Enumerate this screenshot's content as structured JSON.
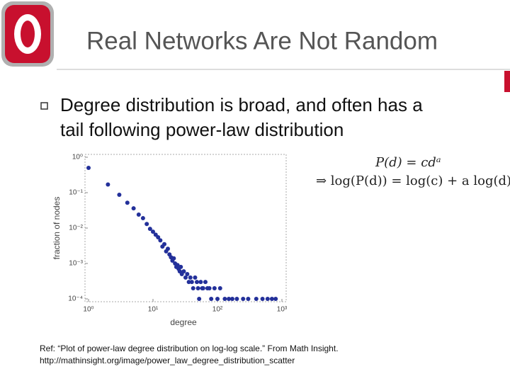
{
  "header": {
    "title": "Real Networks Are Not Random"
  },
  "bullets": [
    {
      "lines": [
        "Degree distribution is broad, and often has a",
        "tail following power-law distribution"
      ]
    }
  ],
  "formula": [
    "P(d) = cdᵃ",
    "⇒ log(P(d)) = log(c) + a log(d)"
  ],
  "reference": [
    "Ref: “Plot of power-law degree distribution on log-log scale.” From Math Insight.",
    "http://mathinsight.org/image/power_law_degree_distribution_scatter"
  ],
  "chart_data": {
    "type": "scatter",
    "x_label": "degree",
    "y_label": "fraction of nodes",
    "xscale": "log",
    "yscale": "log",
    "color": "#23309a",
    "xlim": [
      1,
      1000
    ],
    "ylim": [
      0.0001,
      1
    ],
    "xticks": [
      {
        "value": 1,
        "label": "10⁰"
      },
      {
        "value": 10,
        "label": "10¹"
      },
      {
        "value": 100,
        "label": "10²"
      },
      {
        "value": 1000,
        "label": "10³"
      }
    ],
    "yticks": [
      {
        "value": 1,
        "label": "10⁰"
      },
      {
        "value": 0.1,
        "label": "10⁻¹"
      },
      {
        "value": 0.01,
        "label": "10⁻²"
      },
      {
        "value": 0.001,
        "label": "10⁻³"
      },
      {
        "value": 0.0001,
        "label": "10⁻⁴"
      }
    ],
    "x": [
      1,
      2,
      3,
      4,
      5,
      6,
      7,
      8,
      9,
      10,
      11,
      12,
      13,
      14,
      15,
      16,
      17,
      18,
      19,
      20,
      21,
      22,
      23,
      24,
      25,
      26,
      27,
      28,
      30,
      32,
      34,
      36,
      38,
      40,
      42,
      45,
      48,
      50,
      52,
      55,
      58,
      60,
      65,
      70,
      75,
      80,
      90,
      100,
      110,
      130,
      150,
      170,
      200,
      250,
      300,
      400,
      500,
      600,
      700,
      800
    ],
    "y": [
      0.5,
      0.17,
      0.087,
      0.052,
      0.036,
      0.024,
      0.019,
      0.013,
      0.0095,
      0.0079,
      0.0065,
      0.0055,
      0.0045,
      0.003,
      0.0035,
      0.0022,
      0.0026,
      0.0018,
      0.0015,
      0.0012,
      0.0014,
      0.001,
      0.0008,
      0.0009,
      0.0007,
      0.0006,
      0.0008,
      0.0005,
      0.0006,
      0.0004,
      0.0005,
      0.0003,
      0.0004,
      0.0003,
      0.0002,
      0.0004,
      0.0003,
      0.0002,
      0.0001,
      0.0003,
      0.0002,
      0.0002,
      0.0003,
      0.0002,
      0.0002,
      0.0001,
      0.0002,
      0.0001,
      0.0002,
      0.0001,
      0.0001,
      0.0001,
      0.0001,
      0.0001,
      0.0001,
      0.0001,
      0.0001,
      0.0001,
      0.0001,
      0.0001
    ]
  }
}
